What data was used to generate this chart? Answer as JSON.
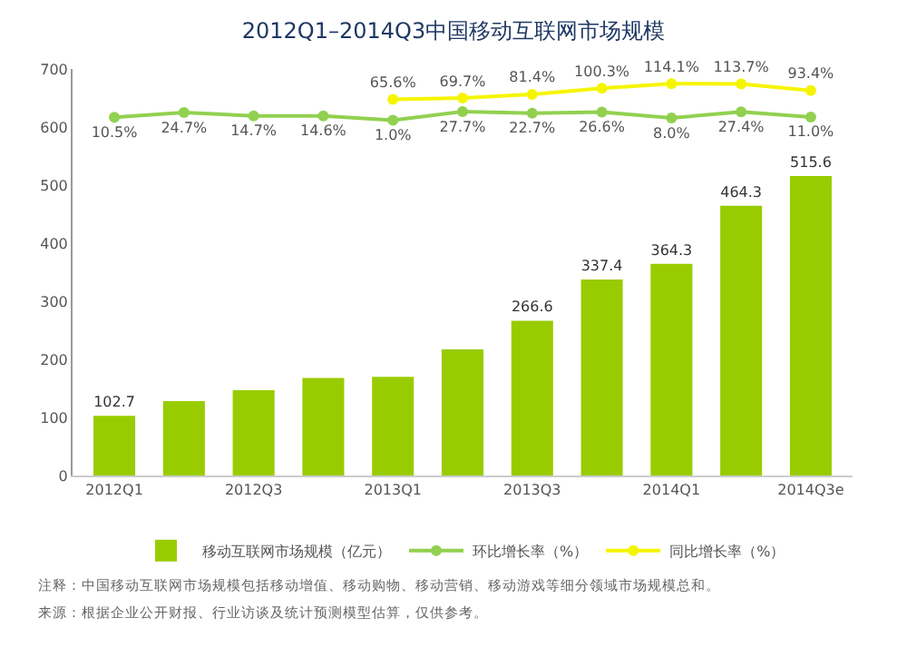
{
  "chart_data": {
    "type": "bar",
    "title": "2012Q1–2014Q3中国移动互联网市场规模",
    "categories": [
      "2012Q1",
      null,
      "2012Q3",
      null,
      "2013Q1",
      null,
      "2013Q3",
      null,
      "2014Q1",
      null,
      "2014Q3e"
    ],
    "ylim": [
      0,
      700
    ],
    "yticks": [
      0,
      100,
      200,
      300,
      400,
      500,
      600,
      700
    ],
    "y2lim": [
      -1100,
      160
    ],
    "series": [
      {
        "name": "移动互联网市场规模（亿元）",
        "color": "#99cc00",
        "values": [
          102.7,
          128,
          147,
          168,
          170,
          217,
          266.6,
          337.4,
          364.3,
          464.3,
          515.6
        ],
        "value_labels": [
          "102.7",
          null,
          null,
          null,
          null,
          null,
          "266.6",
          "337.4",
          "364.3",
          "464.3",
          "515.6"
        ]
      },
      {
        "name": "环比增长率（%）",
        "type": "line",
        "axis": "y2",
        "color": "#92d050",
        "marker": "circle",
        "values": [
          10.5,
          24.7,
          14.7,
          14.6,
          1.0,
          27.7,
          22.7,
          26.6,
          8.0,
          27.4,
          11.0
        ],
        "value_labels": [
          "10.5%",
          "24.7%",
          "14.7%",
          "14.6%",
          "1.0%",
          "27.7%",
          "22.7%",
          "26.6%",
          "8.0%",
          "27.4%",
          "11.0%"
        ]
      },
      {
        "name": "同比增长率（%）",
        "type": "line",
        "axis": "y2",
        "color": "#f5f500",
        "marker": "circle",
        "values": [
          null,
          null,
          null,
          null,
          65.6,
          69.7,
          81.4,
          100.3,
          114.1,
          113.7,
          93.4
        ],
        "value_labels": [
          null,
          null,
          null,
          null,
          "65.6%",
          "69.7%",
          "81.4%",
          "100.3%",
          "114.1%",
          "113.7%",
          "93.4%"
        ]
      }
    ],
    "legend": "bottom",
    "grid": false,
    "annotations": [
      "注释：中国移动互联网市场规模包括移动增值、移动购物、移动营销、移动游戏等细分领域市场规模总和。",
      "来源：根据企业公开财报、行业访谈及统计预测模型估算，仅供参考。"
    ]
  }
}
